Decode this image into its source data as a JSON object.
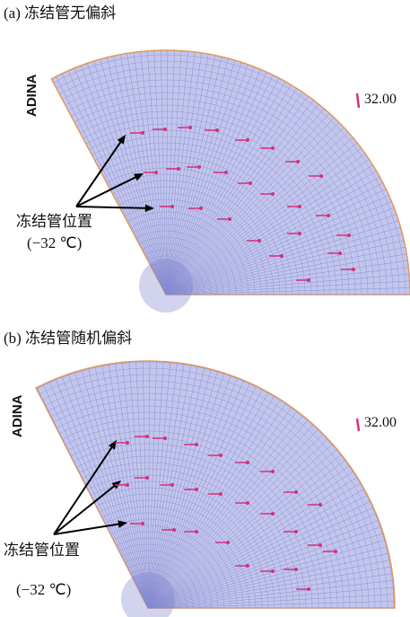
{
  "panels": [
    {
      "title": "(a) 冻结管无偏斜",
      "software": "ADINA",
      "legend": "32.00",
      "annotation": "冻结管位置",
      "annotation_temp": "(−32 ℃)"
    },
    {
      "title": "(b) 冻结管随机偏斜",
      "software": "ADINA",
      "legend": "32.00",
      "annotation": "冻结管位置",
      "annotation_temp": "(−32 ℃)"
    }
  ]
}
